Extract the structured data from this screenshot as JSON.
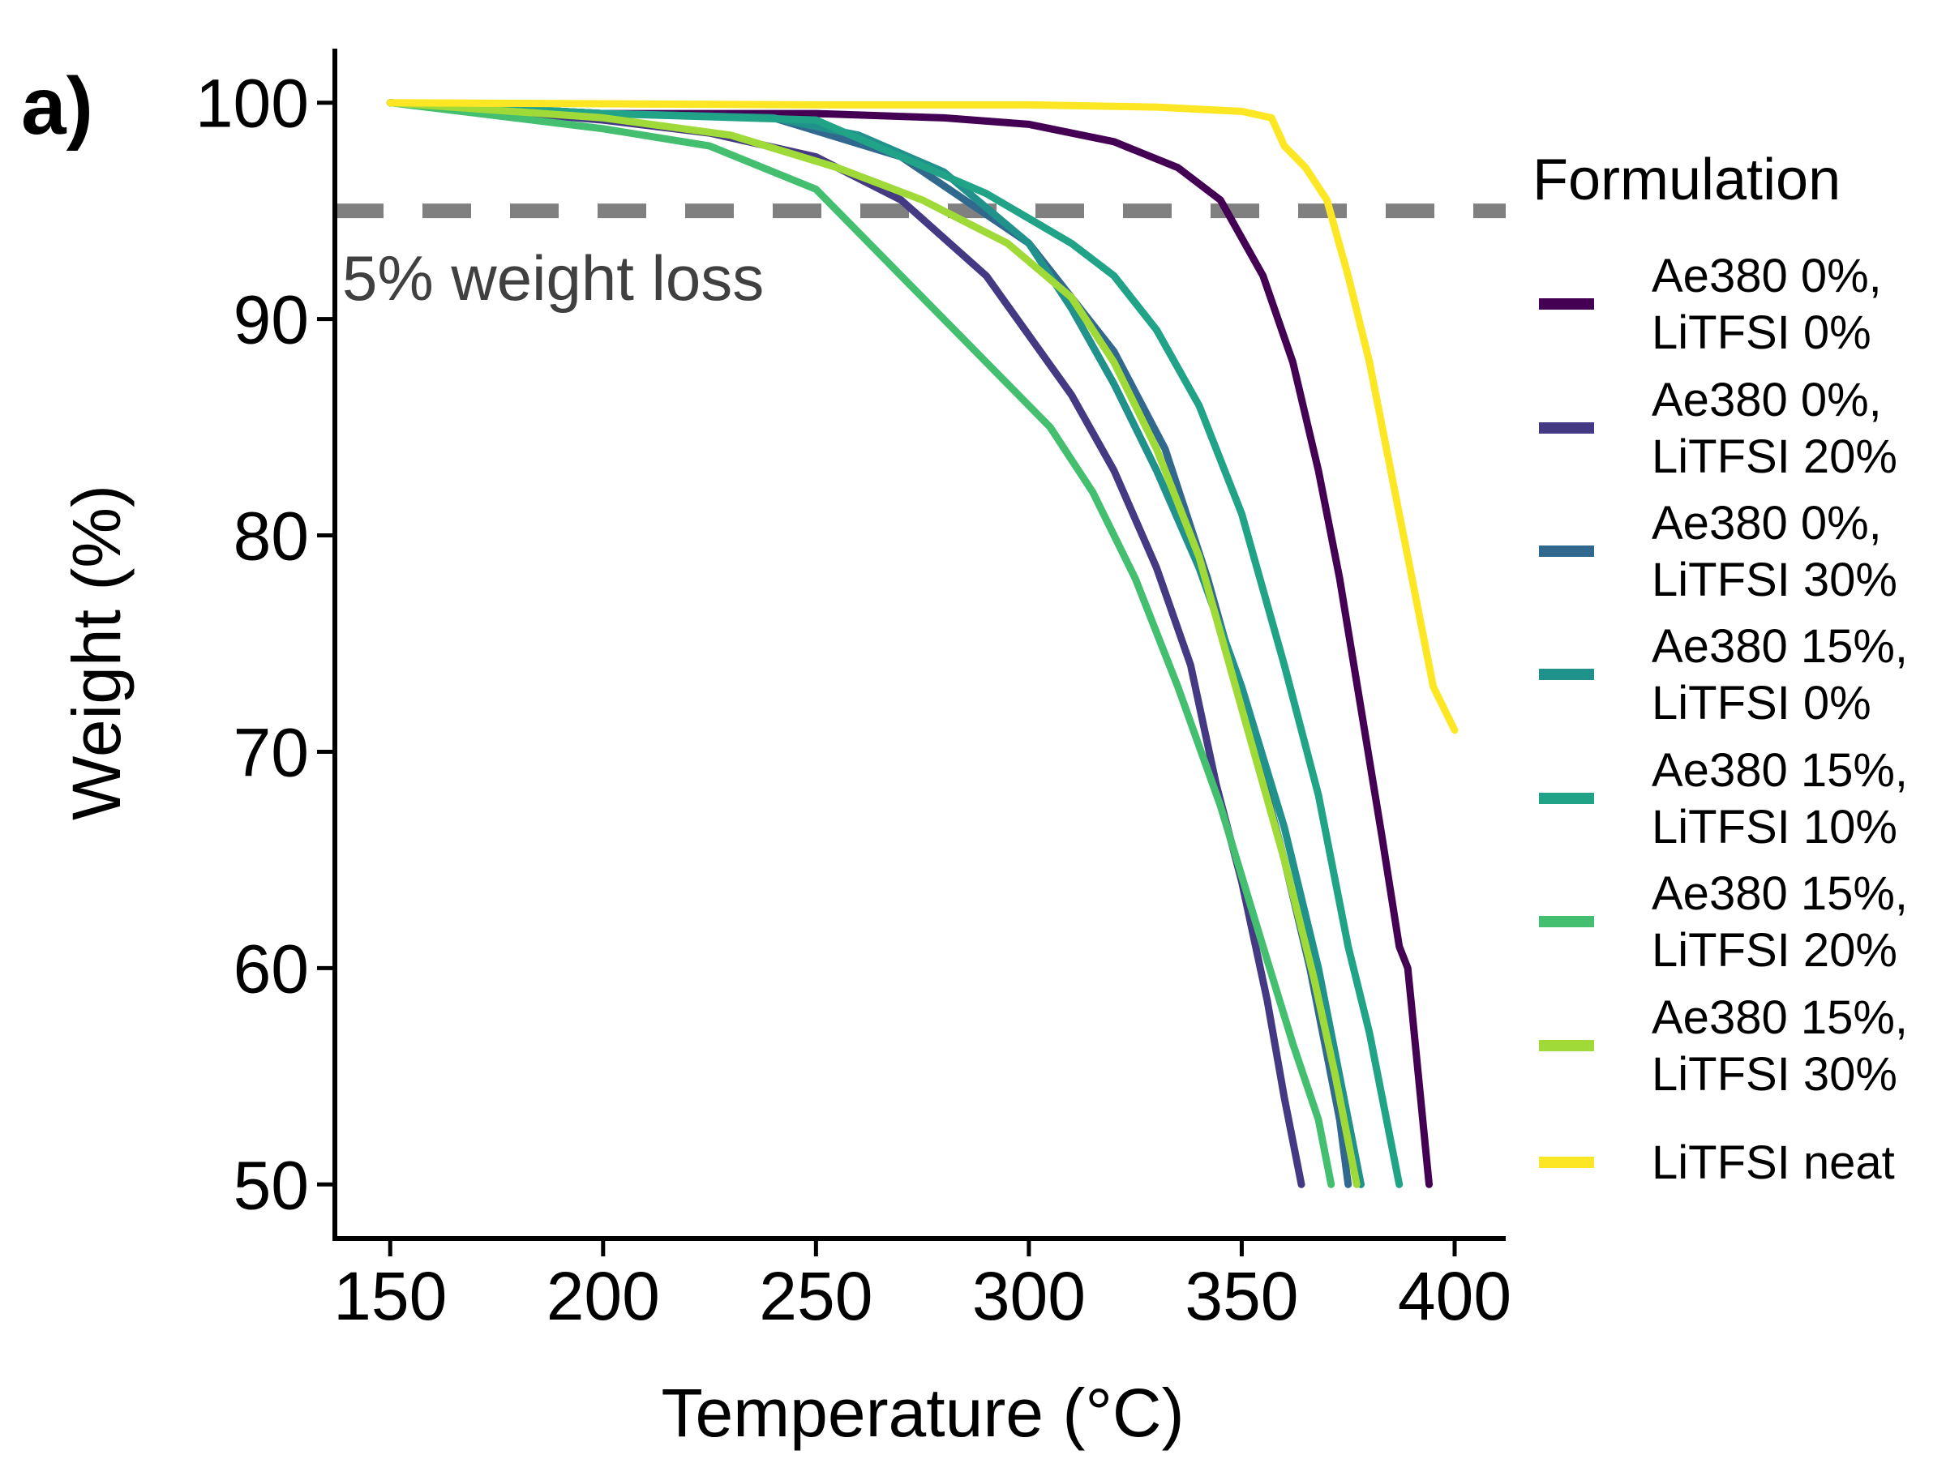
{
  "panel_label": "a)",
  "chart_data": {
    "type": "line",
    "title": "",
    "xlabel": "Temperature (°C)",
    "ylabel": "Weight (%)",
    "xlim": [
      137,
      412
    ],
    "ylim": [
      47.5,
      102.5
    ],
    "xticks": [
      150,
      200,
      250,
      300,
      350,
      400
    ],
    "yticks": [
      50,
      60,
      70,
      80,
      90,
      100
    ],
    "grid": false,
    "legend": {
      "title": "Formulation",
      "position": "right"
    },
    "reference_line": {
      "y": 95,
      "style": "dashed",
      "color": "#808080",
      "label": "5% weight loss"
    },
    "series": [
      {
        "name": [
          "Ae380 0%,",
          "LiTFSI 0%"
        ],
        "color": "#440154",
        "points": [
          [
            150,
            100
          ],
          [
            200,
            99.5
          ],
          [
            250,
            99.5
          ],
          [
            280,
            99.3
          ],
          [
            300,
            99
          ],
          [
            320,
            98.2
          ],
          [
            335,
            97
          ],
          [
            345,
            95.5
          ],
          [
            355,
            92
          ],
          [
            362,
            88
          ],
          [
            368,
            83
          ],
          [
            373,
            78
          ],
          [
            378,
            72
          ],
          [
            383,
            66
          ],
          [
            387,
            61
          ],
          [
            389,
            60
          ],
          [
            390,
            58
          ],
          [
            392,
            54
          ],
          [
            394,
            50
          ]
        ]
      },
      {
        "name": [
          "Ae380 0%,",
          "LiTFSI 20%"
        ],
        "color": "#443983",
        "points": [
          [
            150,
            100
          ],
          [
            200,
            99.2
          ],
          [
            225,
            98.6
          ],
          [
            250,
            97.5
          ],
          [
            270,
            95.5
          ],
          [
            290,
            92
          ],
          [
            310,
            86.5
          ],
          [
            320,
            83
          ],
          [
            330,
            78.5
          ],
          [
            338,
            74
          ],
          [
            344,
            68.5
          ],
          [
            350,
            64
          ],
          [
            356,
            58.5
          ],
          [
            360,
            54
          ],
          [
            364,
            50
          ]
        ]
      },
      {
        "name": [
          "Ae380 0%,",
          "LiTFSI 30%"
        ],
        "color": "#31688e",
        "points": [
          [
            150,
            100
          ],
          [
            200,
            99.5
          ],
          [
            240,
            99.3
          ],
          [
            270,
            97.5
          ],
          [
            300,
            93.5
          ],
          [
            320,
            88.5
          ],
          [
            332,
            84
          ],
          [
            342,
            78
          ],
          [
            352,
            71
          ],
          [
            360,
            65
          ],
          [
            366,
            60
          ],
          [
            370,
            56
          ],
          [
            373,
            53
          ],
          [
            375,
            50
          ]
        ]
      },
      {
        "name": [
          "Ae380 15%,",
          "LiTFSI 0%"
        ],
        "color": "#21918c",
        "points": [
          [
            150,
            100
          ],
          [
            200,
            99.5
          ],
          [
            240,
            99.3
          ],
          [
            260,
            98.5
          ],
          [
            280,
            96.8
          ],
          [
            300,
            93.5
          ],
          [
            310,
            90.5
          ],
          [
            320,
            87
          ],
          [
            330,
            83
          ],
          [
            340,
            78.5
          ],
          [
            350,
            73
          ],
          [
            360,
            66.5
          ],
          [
            368,
            60
          ],
          [
            373,
            55
          ],
          [
            376,
            52
          ],
          [
            378,
            50
          ]
        ]
      },
      {
        "name": [
          "Ae380 15%,",
          "LiTFSI 10%"
        ],
        "color": "#20a387",
        "points": [
          [
            150,
            100
          ],
          [
            200,
            99.5
          ],
          [
            250,
            99.2
          ],
          [
            270,
            97.5
          ],
          [
            290,
            95.8
          ],
          [
            310,
            93.5
          ],
          [
            320,
            92
          ],
          [
            330,
            89.5
          ],
          [
            340,
            86
          ],
          [
            350,
            81
          ],
          [
            360,
            74
          ],
          [
            368,
            68
          ],
          [
            375,
            61
          ],
          [
            380,
            57
          ],
          [
            384,
            53
          ],
          [
            387,
            50
          ]
        ]
      },
      {
        "name": [
          "Ae380 15%,",
          "LiTFSI 20%"
        ],
        "color": "#44bf70",
        "points": [
          [
            150,
            100
          ],
          [
            200,
            98.8
          ],
          [
            225,
            98
          ],
          [
            250,
            96
          ],
          [
            270,
            92
          ],
          [
            290,
            88
          ],
          [
            305,
            85
          ],
          [
            315,
            82
          ],
          [
            325,
            78
          ],
          [
            335,
            73
          ],
          [
            345,
            67.5
          ],
          [
            355,
            61
          ],
          [
            362,
            56.5
          ],
          [
            368,
            53
          ],
          [
            371,
            50
          ]
        ]
      },
      {
        "name": [
          "Ae380 15%,",
          "LiTFSI 30%"
        ],
        "color": "#a0da39",
        "points": [
          [
            150,
            100
          ],
          [
            200,
            99.3
          ],
          [
            230,
            98.5
          ],
          [
            255,
            97
          ],
          [
            275,
            95.5
          ],
          [
            295,
            93.5
          ],
          [
            310,
            91
          ],
          [
            320,
            88
          ],
          [
            330,
            84
          ],
          [
            340,
            79
          ],
          [
            350,
            72
          ],
          [
            360,
            65
          ],
          [
            367,
            59.5
          ],
          [
            372,
            55
          ],
          [
            375,
            52
          ],
          [
            377,
            50
          ]
        ]
      },
      {
        "name": [
          "LiTFSI neat"
        ],
        "color": "#fde725",
        "points": [
          [
            150,
            100
          ],
          [
            250,
            99.9
          ],
          [
            300,
            99.9
          ],
          [
            330,
            99.8
          ],
          [
            350,
            99.6
          ],
          [
            357,
            99.3
          ],
          [
            360,
            98
          ],
          [
            365,
            97
          ],
          [
            370,
            95.5
          ],
          [
            375,
            92
          ],
          [
            380,
            88
          ],
          [
            385,
            83
          ],
          [
            390,
            78
          ],
          [
            395,
            73
          ],
          [
            400,
            71
          ]
        ]
      }
    ]
  }
}
